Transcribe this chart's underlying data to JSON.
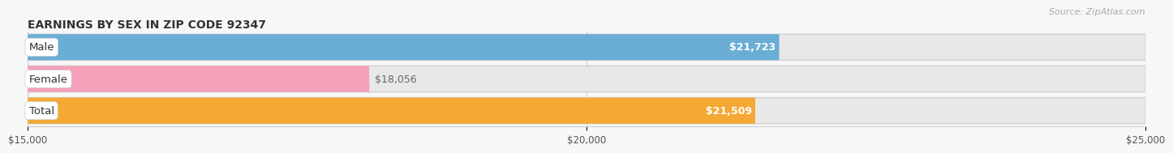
{
  "title": "EARNINGS BY SEX IN ZIP CODE 92347",
  "source": "Source: ZipAtlas.com",
  "categories": [
    "Male",
    "Female",
    "Total"
  ],
  "values": [
    21723,
    18056,
    21509
  ],
  "labels": [
    "$21,723",
    "$18,056",
    "$21,509"
  ],
  "label_inside": [
    true,
    false,
    true
  ],
  "bar_colors": [
    "#6aaed6",
    "#f4a0b8",
    "#f5a833"
  ],
  "bar_bg_color": "#e8e8e8",
  "bar_border_color": "#d0d0d0",
  "background_color": "#f7f7f7",
  "row_bg_color": "#f0f0f0",
  "xmin": 15000,
  "xmax": 25000,
  "xticks": [
    15000,
    20000,
    25000
  ],
  "xtick_labels": [
    "$15,000",
    "$20,000",
    "$25,000"
  ],
  "title_fontsize": 10,
  "source_fontsize": 8,
  "label_fontsize": 9,
  "category_fontsize": 9.5
}
